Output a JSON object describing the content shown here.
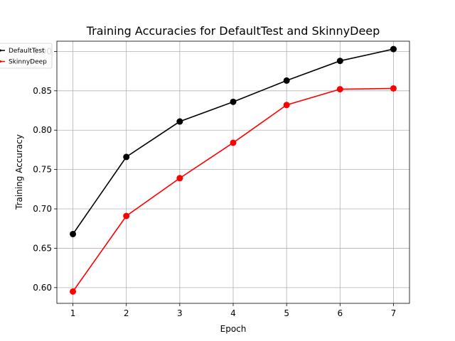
{
  "chart_data": {
    "type": "line",
    "title": "Training Accuracies for DefaultTest and SkinnyDeep",
    "xlabel": "Epoch",
    "ylabel": "Training Accuracy",
    "x": [
      1,
      2,
      3,
      4,
      5,
      6,
      7
    ],
    "xlim": [
      0.7,
      7.3
    ],
    "ylim": [
      0.58,
      0.913
    ],
    "xticks": [
      1,
      2,
      3,
      4,
      5,
      6,
      7
    ],
    "yticks": [
      0.6,
      0.65,
      0.7,
      0.75,
      0.8,
      0.85,
      0.9
    ],
    "ytick_labels": [
      "0.60",
      "0.65",
      "0.70",
      "0.75",
      "0.80",
      "0.85",
      "0.90"
    ],
    "grid": true,
    "legend": "top-left",
    "series": [
      {
        "name": "DefaultTest",
        "color": "#000000",
        "marker": "circle",
        "values": [
          0.668,
          0.766,
          0.811,
          0.836,
          0.863,
          0.888,
          0.903
        ]
      },
      {
        "name": "SkinnyDeep",
        "color": "#ff0000",
        "marker": "circle",
        "values": [
          0.595,
          0.691,
          0.739,
          0.784,
          0.832,
          0.852,
          0.853
        ]
      }
    ]
  }
}
